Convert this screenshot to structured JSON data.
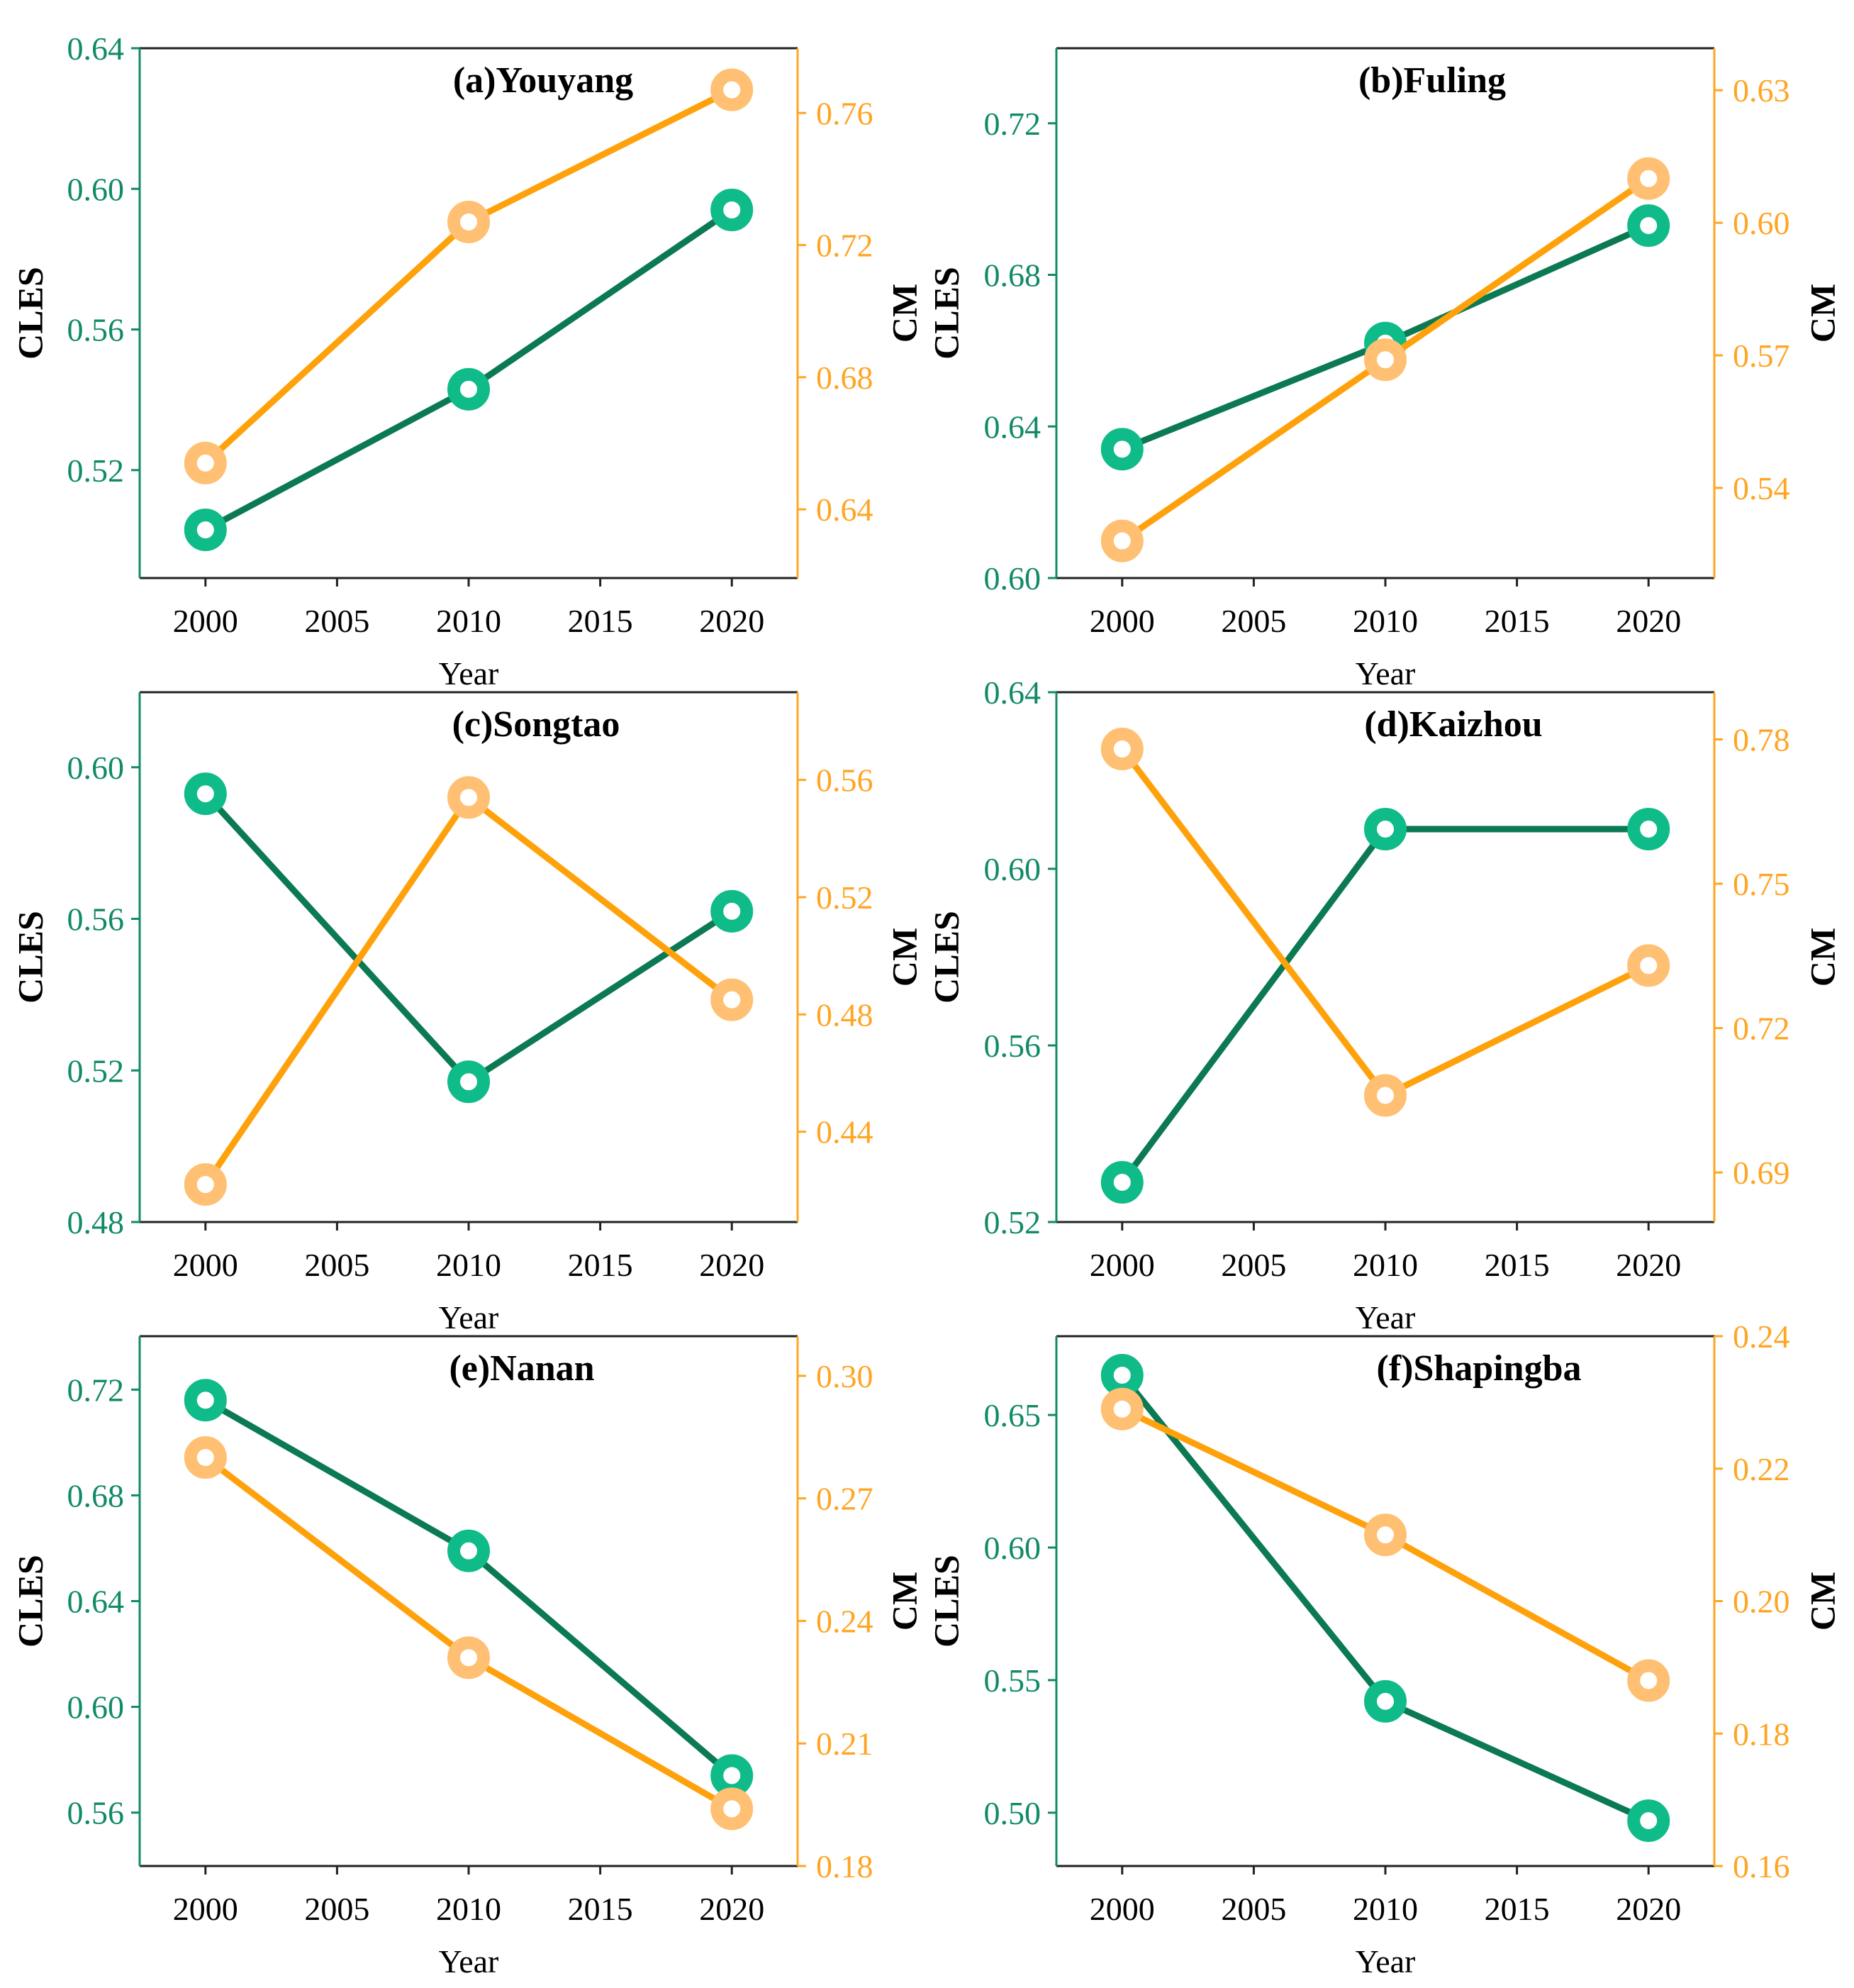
{
  "colors": {
    "cles_line": "#0b7a52",
    "cles_marker": "#0fbb88",
    "cles_text": "#118a68",
    "cm_line": "#ffa10a",
    "cm_marker": "#ffc073",
    "cm_text": "#ffa524"
  },
  "chart_data": [
    {
      "type": "line",
      "title": "(a)Youyang",
      "xlabel": "Year",
      "ylabel": "CLES",
      "y2label": "CM",
      "x": [
        2000,
        2010,
        2020
      ],
      "xticks": [
        "2000",
        "2005",
        "2010",
        "2015",
        "2020"
      ],
      "xlim": [
        1997.5,
        2022.5
      ],
      "ylim": [
        0.4893,
        0.64
      ],
      "yticks": [
        "0.52",
        "0.56",
        "0.60",
        "0.64"
      ],
      "y2lim": [
        0.6192,
        0.7796
      ],
      "y2ticks": [
        "0.64",
        "0.68",
        "0.72",
        "0.76"
      ],
      "series": [
        {
          "name": "CLES",
          "axis": "left",
          "values": [
            0.503,
            0.543,
            0.594
          ]
        },
        {
          "name": "CM",
          "axis": "right",
          "values": [
            0.654,
            0.727,
            0.767
          ]
        }
      ]
    },
    {
      "type": "line",
      "title": "(b)Fuling",
      "xlabel": "Year",
      "ylabel": "CLES",
      "y2label": "CM",
      "x": [
        2000,
        2010,
        2020
      ],
      "xticks": [
        "2000",
        "2005",
        "2010",
        "2015",
        "2020"
      ],
      "xlim": [
        1997.5,
        2022.5
      ],
      "ylim": [
        0.6,
        0.7398
      ],
      "yticks": [
        "0.60",
        "0.64",
        "0.68",
        "0.72"
      ],
      "y2lim": [
        0.5196,
        0.6395
      ],
      "y2ticks": [
        "0.54",
        "0.57",
        "0.60",
        "0.63"
      ],
      "series": [
        {
          "name": "CLES",
          "axis": "left",
          "values": [
            0.634,
            0.662,
            0.693
          ]
        },
        {
          "name": "CM",
          "axis": "right",
          "values": [
            0.528,
            0.569,
            0.61
          ]
        }
      ]
    },
    {
      "type": "line",
      "title": "(c)Songtao",
      "xlabel": "Year",
      "ylabel": "CLES",
      "y2label": "CM",
      "x": [
        2000,
        2010,
        2020
      ],
      "xticks": [
        "2000",
        "2005",
        "2010",
        "2015",
        "2020"
      ],
      "xlim": [
        1997.5,
        2022.5
      ],
      "ylim": [
        0.48,
        0.6198
      ],
      "yticks": [
        "0.48",
        "0.52",
        "0.56",
        "0.60"
      ],
      "y2lim": [
        0.4092,
        0.5899
      ],
      "y2ticks": [
        "0.44",
        "0.48",
        "0.52",
        "0.56"
      ],
      "series": [
        {
          "name": "CLES",
          "axis": "left",
          "values": [
            0.593,
            0.517,
            0.562
          ]
        },
        {
          "name": "CM",
          "axis": "right",
          "values": [
            0.422,
            0.554,
            0.485
          ]
        }
      ]
    },
    {
      "type": "line",
      "title": "(d)Kaizhou",
      "xlabel": "Year",
      "ylabel": "CLES",
      "y2label": "CM",
      "x": [
        2000,
        2010,
        2020
      ],
      "xticks": [
        "2000",
        "2005",
        "2010",
        "2015",
        "2020"
      ],
      "xlim": [
        1997.5,
        2022.5
      ],
      "ylim": [
        0.52,
        0.64
      ],
      "yticks": [
        "0.52",
        "0.56",
        "0.60",
        "0.64"
      ],
      "y2lim": [
        0.6797,
        0.7898
      ],
      "y2ticks": [
        "0.69",
        "0.72",
        "0.75",
        "0.78"
      ],
      "series": [
        {
          "name": "CLES",
          "axis": "left",
          "values": [
            0.529,
            0.609,
            0.609
          ]
        },
        {
          "name": "CM",
          "axis": "right",
          "values": [
            0.778,
            0.706,
            0.733
          ]
        }
      ]
    },
    {
      "type": "line",
      "title": "(e)Nanan",
      "xlabel": "Year",
      "ylabel": "CLES",
      "y2label": "CM",
      "x": [
        2000,
        2010,
        2020
      ],
      "xticks": [
        "2000",
        "2005",
        "2010",
        "2015",
        "2020"
      ],
      "xlim": [
        1997.5,
        2022.5
      ],
      "ylim": [
        0.5398,
        0.7402
      ],
      "yticks": [
        "0.56",
        "0.60",
        "0.64",
        "0.68",
        "0.72"
      ],
      "y2lim": [
        0.18,
        0.3097
      ],
      "y2ticks": [
        "0.18",
        "0.21",
        "0.24",
        "0.27",
        "0.30"
      ],
      "series": [
        {
          "name": "CLES",
          "axis": "left",
          "values": [
            0.716,
            0.659,
            0.574
          ]
        },
        {
          "name": "CM",
          "axis": "right",
          "values": [
            0.28,
            0.231,
            0.194
          ]
        }
      ]
    },
    {
      "type": "line",
      "title": "(f)Shapingba",
      "xlabel": "Year",
      "ylabel": "CLES",
      "y2label": "CM",
      "x": [
        2000,
        2010,
        2020
      ],
      "xticks": [
        "2000",
        "2005",
        "2010",
        "2015",
        "2020"
      ],
      "xlim": [
        1997.5,
        2022.5
      ],
      "ylim": [
        0.4799,
        0.6797
      ],
      "yticks": [
        "0.50",
        "0.55",
        "0.60",
        "0.65"
      ],
      "y2lim": [
        0.16,
        0.24
      ],
      "y2ticks": [
        "0.16",
        "0.18",
        "0.20",
        "0.22",
        "0.24"
      ],
      "series": [
        {
          "name": "CLES",
          "axis": "left",
          "values": [
            0.665,
            0.542,
            0.497
          ]
        },
        {
          "name": "CM",
          "axis": "right",
          "values": [
            0.229,
            0.21,
            0.188
          ]
        }
      ]
    }
  ]
}
